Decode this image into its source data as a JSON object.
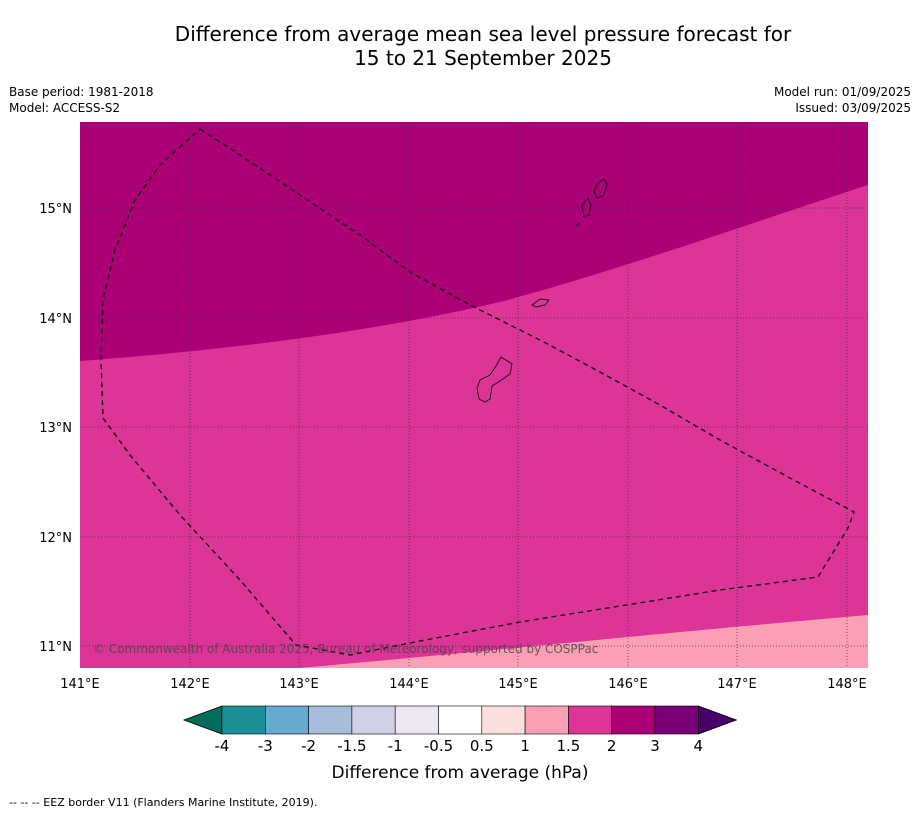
{
  "title": {
    "line1": "Difference from average mean sea level pressure forecast for",
    "line2": "15 to 21 September 2025"
  },
  "meta": {
    "base_period": "Base period: 1981-2018",
    "model": "Model: ACCESS-S2",
    "model_run": "Model run: 01/09/2025",
    "issued": "Issued: 03/09/2025"
  },
  "map": {
    "lat_ticks": [
      "15°N",
      "14°N",
      "13°N",
      "12°N",
      "11°N"
    ],
    "lon_ticks": [
      "141°E",
      "142°E",
      "143°E",
      "144°E",
      "145°E",
      "146°E",
      "147°E",
      "148°E"
    ],
    "copyright": "© Commonwealth of Australia 2025, Bureau of Meteorology, supported by COSPPac",
    "colors": {
      "band_2_3": "#ac0077",
      "band_1_5_2": "#dd3497",
      "band_1_1_5": "#fa9fb5"
    }
  },
  "colorbar": {
    "title": "Difference from average (hPa)",
    "labels": [
      "-4",
      "-3",
      "-2",
      "-1.5",
      "-1",
      "-0.5",
      "0.5",
      "1",
      "1.5",
      "2",
      "3",
      "4"
    ],
    "colors": [
      "#016c59",
      "#1c9099",
      "#67a9cf",
      "#a6bddb",
      "#d0d1e6",
      "#ece7f2",
      "#ffffff",
      "#fde0dd",
      "#fa9fb5",
      "#dd3497",
      "#ac0077",
      "#7a0177",
      "#49006a"
    ]
  },
  "footer": "-- -- -- EEZ border V11 (Flanders Marine Institute, 2019)."
}
